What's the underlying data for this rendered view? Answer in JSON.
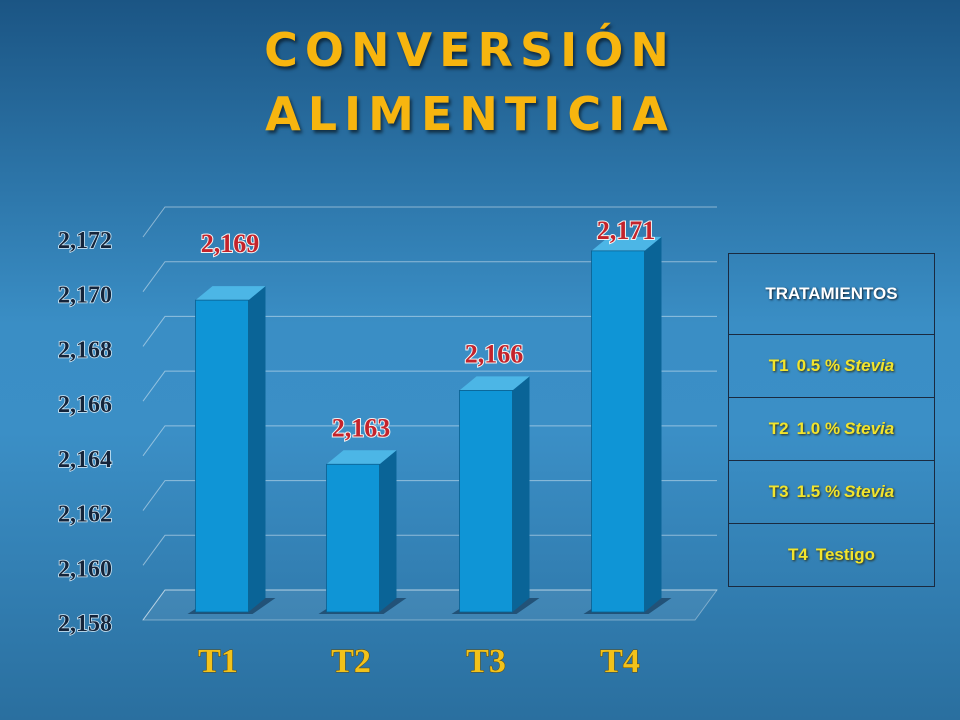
{
  "chart_data": {
    "type": "bar3d",
    "title": "CONVERSIÓN ALIMENTICIA",
    "categories": [
      "T1",
      "T2",
      "T3",
      "T4"
    ],
    "values": [
      2.1694,
      2.1634,
      2.1661,
      2.1712
    ],
    "value_labels": [
      "2,169",
      "2,163",
      "2,166",
      "2,171"
    ],
    "color": "#0f95d6",
    "ylim": [
      2.158,
      2.172
    ],
    "yticks": [
      {
        "value": 2.158,
        "label": "2,158"
      },
      {
        "value": 2.16,
        "label": "2,160"
      },
      {
        "value": 2.162,
        "label": "2,162"
      },
      {
        "value": 2.164,
        "label": "2,164"
      },
      {
        "value": 2.166,
        "label": "2,166"
      },
      {
        "value": 2.168,
        "label": "2,168"
      },
      {
        "value": 2.17,
        "label": "2,170"
      },
      {
        "value": 2.172,
        "label": "2,172"
      }
    ],
    "grid": true
  },
  "table": {
    "header": "TRATAMIENTOS",
    "rows": [
      [
        "T1",
        "0.5 %",
        "Stevia"
      ],
      [
        "T2",
        "1.0 %",
        "Stevia"
      ],
      [
        "T3",
        "1.5 %",
        "Stevia"
      ],
      [
        "T4",
        "Testigo"
      ]
    ]
  }
}
